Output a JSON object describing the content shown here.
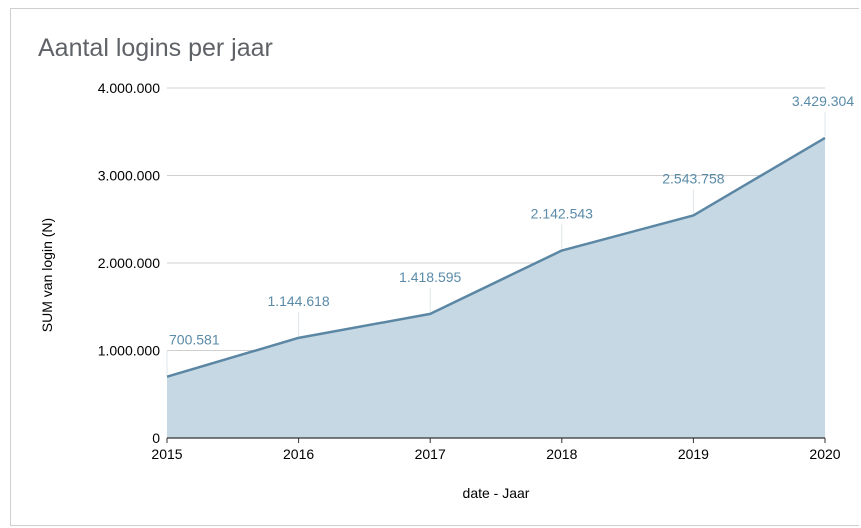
{
  "chart_data": {
    "type": "area",
    "title": "Aantal logins per jaar",
    "xlabel": "date - Jaar",
    "ylabel": "SUM van login (N)",
    "x": [
      "2015",
      "2016",
      "2017",
      "2018",
      "2019",
      "2020"
    ],
    "series": [
      {
        "values": [
          700581,
          1144618,
          1418595,
          2142543,
          2543758,
          3429304
        ],
        "labels": [
          "700.581",
          "1.144.618",
          "1.418.595",
          "2.142.543",
          "2.543.758",
          "3.429.304"
        ]
      }
    ],
    "ylim": [
      0,
      4000000
    ],
    "yticks": [
      0,
      1000000,
      2000000,
      3000000,
      4000000
    ],
    "ytick_labels": [
      "0",
      "1.000.000",
      "2.000.000",
      "3.000.000",
      "4.000.000"
    ],
    "grid": true,
    "colors": {
      "line": "#5b87a4",
      "fill": "#c6d8e3",
      "label": "#5a8ba8",
      "grid": "#d0d0d0"
    }
  }
}
